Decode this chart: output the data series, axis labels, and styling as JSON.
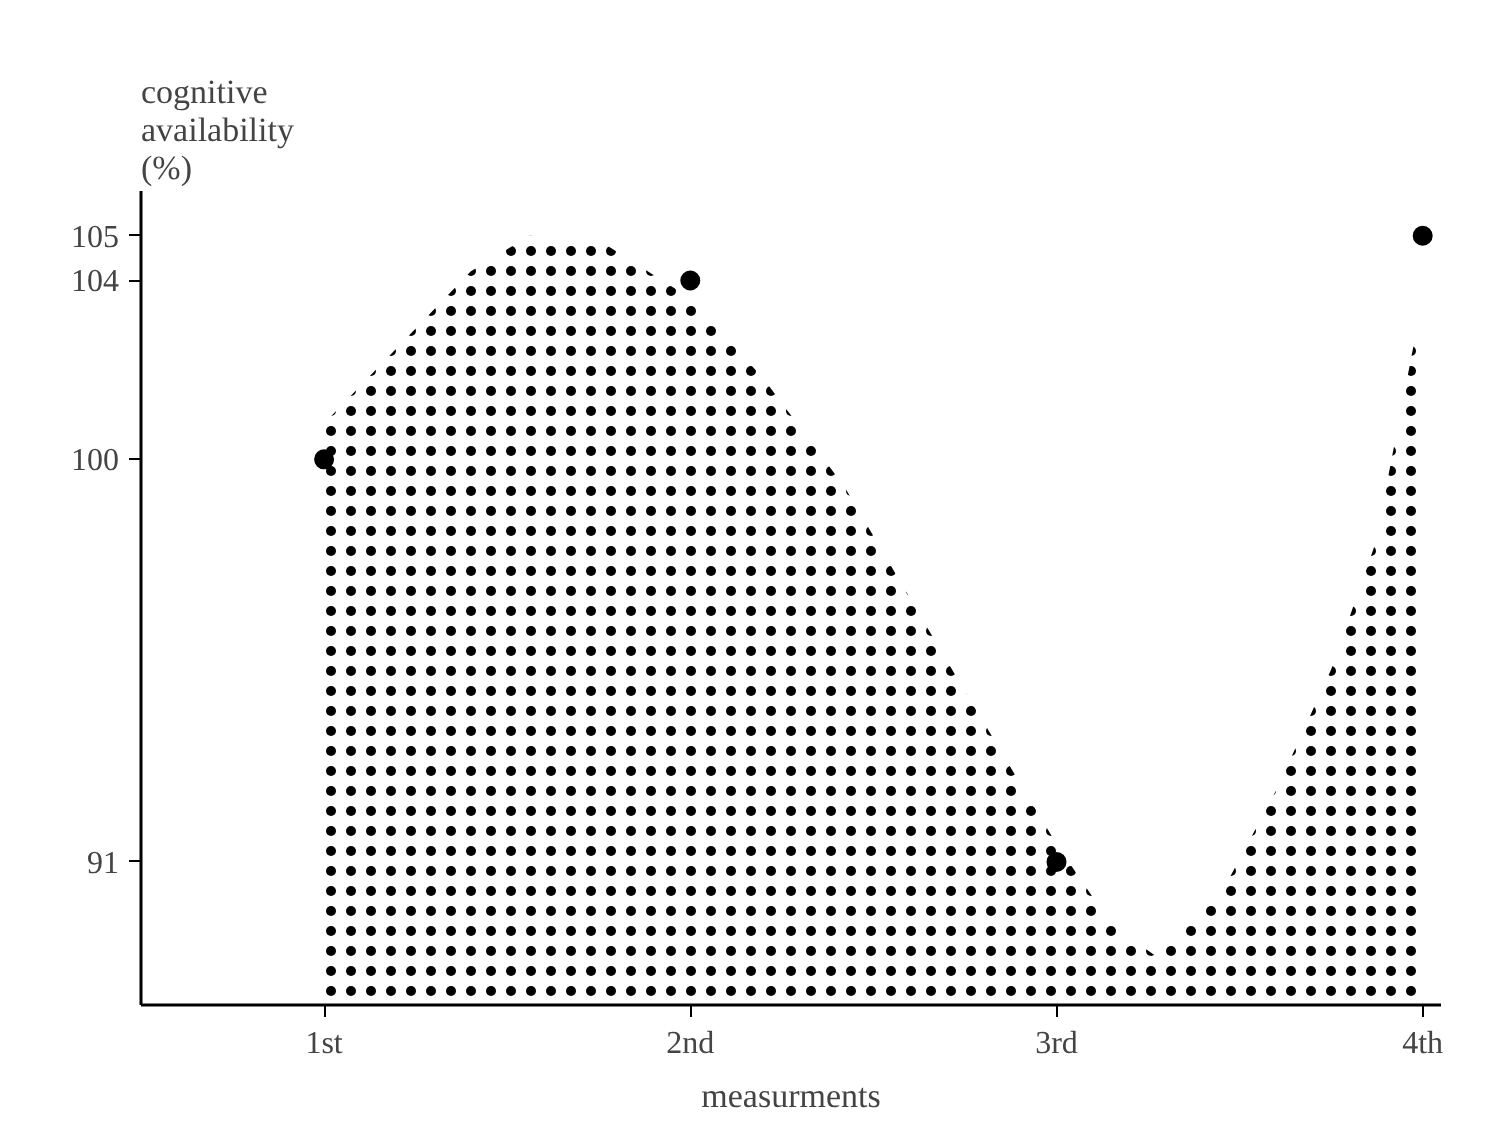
{
  "chart_data": {
    "type": "scatter",
    "xlabel": "measurments",
    "ylabel": "cognitive\navailability\n(%)",
    "xlim": [
      0.5,
      4.05
    ],
    "ylim": [
      87.8,
      106
    ],
    "xticks": [
      {
        "value": 1,
        "label": "1st"
      },
      {
        "value": 2,
        "label": "2nd"
      },
      {
        "value": 3,
        "label": "3rd"
      },
      {
        "value": 4,
        "label": "4th"
      }
    ],
    "yticks": [
      91,
      100,
      104,
      105
    ],
    "grid": false,
    "marker": "circle",
    "series": [
      {
        "type": "area",
        "marker": "none",
        "color": "#000000",
        "x": [
          1,
          1.2,
          1.4,
          1.56,
          1.75,
          2,
          2.2,
          2.42,
          2.7,
          3,
          3.15,
          3.27,
          3.45,
          3.6,
          3.75,
          3.87,
          4
        ],
        "values": [
          100.8,
          102.5,
          104.2,
          105,
          104.9,
          103.6,
          101.8,
          99.4,
          95.5,
          91.4,
          89.6,
          88.9,
          90.3,
          92.6,
          95.3,
          98.1,
          103.6
        ]
      },
      {
        "color": "#000000",
        "x": [
          1,
          2,
          3,
          4
        ],
        "values": [
          100,
          104,
          91,
          105
        ]
      }
    ]
  }
}
